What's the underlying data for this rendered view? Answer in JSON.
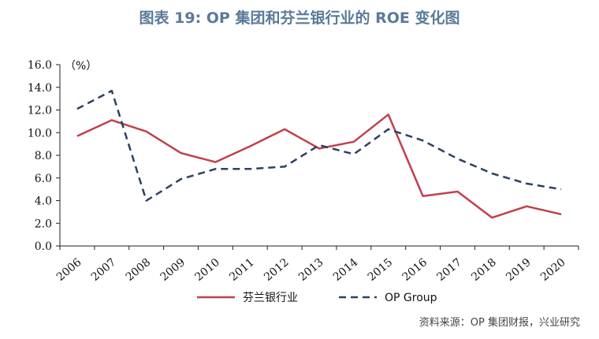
{
  "title": "图表 19: OP 集团和芬兰银行业的 ROE 变化图",
  "source": "资料来源：OP 集团财报，兴业研究",
  "colors": {
    "title": "#5b7a9a",
    "finland_banking": "#c0404c",
    "op_group": "#2e4063",
    "axis": "#222222"
  },
  "chart_data": {
    "type": "line",
    "title": "图表 19: OP 集团和芬兰银行业的 ROE 变化图",
    "unit_label": "（%）",
    "ylim": [
      0,
      16
    ],
    "yticks": [
      "0.0",
      "2.0",
      "4.0",
      "6.0",
      "8.0",
      "10.0",
      "12.0",
      "14.0",
      "16.0"
    ],
    "categories": [
      "2006",
      "2007",
      "2008",
      "2009",
      "2010",
      "2011",
      "2012",
      "2013",
      "2014",
      "2015",
      "2016",
      "2017",
      "2018",
      "2019",
      "2020"
    ],
    "grid": false,
    "legend_position": "bottom",
    "series": [
      {
        "name": "芬兰银行业",
        "style": "solid",
        "color": "#c0404c",
        "values": [
          9.7,
          11.1,
          10.1,
          8.2,
          7.4,
          8.8,
          10.3,
          8.6,
          9.2,
          11.6,
          4.4,
          4.8,
          2.5,
          3.5,
          2.8
        ]
      },
      {
        "name": "OP Group",
        "style": "dashed",
        "color": "#2e4063",
        "values": [
          12.1,
          13.7,
          4.0,
          5.9,
          6.8,
          6.8,
          7.0,
          8.9,
          8.1,
          10.3,
          9.3,
          7.7,
          6.4,
          5.5,
          5.0
        ]
      }
    ]
  }
}
